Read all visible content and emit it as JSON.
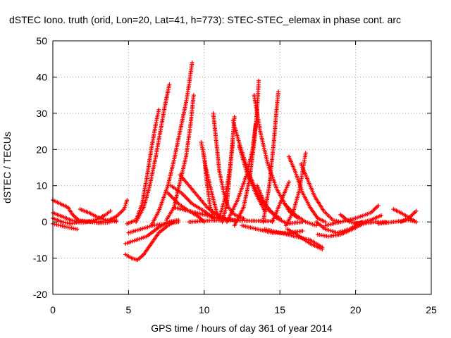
{
  "chart_data": {
    "type": "scatter",
    "title": "dSTEC Iono. truth (orid, Lon=20, Lat=41, h=773): STEC-STEC_elemax in phase cont. arc",
    "xlabel": "GPS time / hours of day 361 of year 2014",
    "ylabel": "dSTEC  / TECUs",
    "xlim": [
      0,
      25
    ],
    "ylim": [
      -20,
      50
    ],
    "xticks": [
      0,
      5,
      10,
      15,
      20,
      25
    ],
    "yticks": [
      -20,
      -10,
      0,
      10,
      20,
      30,
      40,
      50
    ],
    "grid": true,
    "marker": "+",
    "color": "#ff0000",
    "series": [
      {
        "points": [
          [
            0.0,
            6
          ],
          [
            0.5,
            5
          ],
          [
            1.0,
            4
          ],
          [
            1.3,
            2
          ],
          [
            1.7,
            0.5
          ],
          [
            2.2,
            0
          ],
          [
            2.8,
            0.5
          ],
          [
            3.5,
            2
          ],
          [
            3.8,
            3
          ]
        ]
      },
      {
        "points": [
          [
            0.0,
            -0.5
          ],
          [
            0.5,
            -1
          ],
          [
            1.0,
            -1.5
          ],
          [
            1.6,
            -2
          ]
        ]
      },
      {
        "points": [
          [
            0.0,
            2.5
          ],
          [
            0.6,
            1.5
          ],
          [
            1.2,
            0.5
          ],
          [
            1.8,
            -0.2
          ],
          [
            2.4,
            0
          ]
        ]
      },
      {
        "points": [
          [
            0.0,
            1
          ],
          [
            0.6,
            0
          ],
          [
            1.2,
            -0.5
          ],
          [
            2.0,
            0.3
          ],
          [
            2.6,
            0
          ]
        ]
      },
      {
        "points": [
          [
            1.8,
            3.5
          ],
          [
            2.4,
            2.5
          ],
          [
            3.0,
            1.2
          ],
          [
            3.6,
            0.4
          ],
          [
            4.2,
            0.1
          ]
        ]
      },
      {
        "points": [
          [
            2.5,
            0
          ],
          [
            3.0,
            -0.3
          ],
          [
            3.6,
            -0.2
          ],
          [
            4.2,
            0.5
          ]
        ]
      },
      {
        "points": [
          [
            3.0,
            0
          ],
          [
            3.6,
            0.3
          ],
          [
            4.2,
            1.5
          ],
          [
            4.7,
            3.5
          ],
          [
            4.9,
            6
          ]
        ]
      },
      {
        "points": [
          [
            4.9,
            -0.5
          ],
          [
            5.5,
            0.5
          ],
          [
            5.9,
            5
          ],
          [
            6.2,
            12
          ],
          [
            6.5,
            20
          ],
          [
            6.8,
            27
          ],
          [
            7.0,
            31
          ]
        ]
      },
      {
        "points": [
          [
            5.5,
            0
          ],
          [
            6.0,
            4
          ],
          [
            6.4,
            10
          ],
          [
            6.8,
            18
          ],
          [
            7.1,
            25
          ],
          [
            7.4,
            32
          ],
          [
            7.7,
            38
          ]
        ]
      },
      {
        "points": [
          [
            6.5,
            -1
          ],
          [
            7.0,
            3
          ],
          [
            7.6,
            10
          ],
          [
            8.0,
            17
          ],
          [
            8.4,
            25
          ],
          [
            8.8,
            33
          ],
          [
            9.0,
            38
          ],
          [
            9.2,
            44
          ]
        ]
      },
      {
        "points": [
          [
            7.5,
            0.5
          ],
          [
            8.0,
            4
          ],
          [
            8.4,
            11
          ],
          [
            8.8,
            18
          ],
          [
            9.1,
            27
          ],
          [
            9.3,
            35
          ]
        ]
      },
      {
        "points": [
          [
            4.8,
            -9
          ],
          [
            5.2,
            -10
          ],
          [
            5.6,
            -10.5
          ],
          [
            6.0,
            -9
          ],
          [
            6.5,
            -6
          ],
          [
            7.0,
            -3
          ],
          [
            7.6,
            -1
          ],
          [
            8.0,
            0
          ]
        ]
      },
      {
        "points": [
          [
            4.8,
            -6
          ],
          [
            5.5,
            -5
          ],
          [
            6.2,
            -4
          ],
          [
            7.0,
            -1.5
          ],
          [
            7.6,
            0
          ],
          [
            8.3,
            0.5
          ]
        ]
      },
      {
        "points": [
          [
            5.0,
            -3
          ],
          [
            5.8,
            -2
          ],
          [
            6.6,
            -1
          ],
          [
            7.5,
            -0.5
          ],
          [
            8.3,
            0
          ]
        ]
      },
      {
        "points": [
          [
            7.6,
            8
          ],
          [
            8.3,
            5
          ],
          [
            9.0,
            3
          ],
          [
            9.6,
            1.5
          ],
          [
            10.0,
            0
          ]
        ]
      },
      {
        "points": [
          [
            7.8,
            10
          ],
          [
            8.5,
            8
          ],
          [
            9.2,
            5
          ],
          [
            10.0,
            3
          ],
          [
            10.6,
            1
          ]
        ]
      },
      {
        "points": [
          [
            8.4,
            13
          ],
          [
            9.0,
            10
          ],
          [
            9.6,
            7
          ],
          [
            10.2,
            4
          ],
          [
            10.8,
            2
          ],
          [
            11.4,
            1
          ]
        ]
      },
      {
        "points": [
          [
            8.0,
            4
          ],
          [
            9.0,
            3
          ],
          [
            10.0,
            2
          ],
          [
            11.0,
            1
          ],
          [
            12.0,
            0.5
          ]
        ]
      },
      {
        "points": [
          [
            9.0,
            0
          ],
          [
            10.0,
            0.3
          ],
          [
            11.5,
            0.5
          ],
          [
            13.0,
            0.3
          ],
          [
            14.5,
            0.2
          ]
        ]
      },
      {
        "points": [
          [
            9.8,
            22
          ],
          [
            10.0,
            18
          ],
          [
            10.2,
            10
          ],
          [
            10.4,
            4
          ],
          [
            10.6,
            1
          ]
        ]
      },
      {
        "points": [
          [
            9.9,
            20
          ],
          [
            10.1,
            15
          ],
          [
            10.5,
            8
          ],
          [
            10.8,
            3
          ],
          [
            11.0,
            1
          ]
        ]
      },
      {
        "points": [
          [
            10.6,
            30
          ],
          [
            10.8,
            22
          ],
          [
            11.0,
            14
          ],
          [
            11.3,
            8
          ],
          [
            11.6,
            4
          ],
          [
            12.0,
            2
          ],
          [
            12.6,
            1
          ]
        ]
      },
      {
        "points": [
          [
            11.2,
            0
          ],
          [
            11.5,
            5
          ],
          [
            11.7,
            14
          ],
          [
            11.9,
            24
          ],
          [
            12.0,
            29
          ]
        ]
      },
      {
        "points": [
          [
            11.0,
            1
          ],
          [
            11.4,
            7
          ],
          [
            11.7,
            15
          ],
          [
            11.9,
            22
          ]
        ]
      },
      {
        "points": [
          [
            11.5,
            0
          ],
          [
            12.2,
            6
          ],
          [
            12.8,
            13
          ],
          [
            13.2,
            20
          ],
          [
            13.4,
            27
          ]
        ]
      },
      {
        "points": [
          [
            12.0,
            -1
          ],
          [
            12.6,
            4
          ],
          [
            13.0,
            12
          ],
          [
            13.3,
            22
          ],
          [
            13.5,
            31
          ],
          [
            13.6,
            39
          ]
        ]
      },
      {
        "points": [
          [
            11.9,
            28
          ],
          [
            12.3,
            22
          ],
          [
            12.9,
            14
          ],
          [
            13.6,
            7
          ],
          [
            14.3,
            3
          ],
          [
            15.0,
            1
          ]
        ]
      },
      {
        "points": [
          [
            12.3,
            21
          ],
          [
            12.8,
            14
          ],
          [
            13.5,
            7
          ],
          [
            14.0,
            3
          ]
        ]
      },
      {
        "points": [
          [
            13.3,
            35
          ],
          [
            13.7,
            25
          ],
          [
            14.2,
            16
          ],
          [
            14.8,
            9
          ],
          [
            15.2,
            6
          ],
          [
            15.6,
            3
          ],
          [
            16.2,
            1
          ]
        ]
      },
      {
        "points": [
          [
            13.5,
            10
          ],
          [
            14.0,
            5
          ],
          [
            14.8,
            1
          ],
          [
            15.5,
            -0.5
          ],
          [
            16.5,
            0
          ]
        ]
      },
      {
        "points": [
          [
            13.9,
            0
          ],
          [
            14.3,
            10
          ],
          [
            14.6,
            22
          ],
          [
            14.8,
            32
          ],
          [
            14.9,
            36
          ]
        ]
      },
      {
        "points": [
          [
            12.5,
            -1
          ],
          [
            13.5,
            -2
          ],
          [
            14.5,
            -3
          ],
          [
            15.5,
            -3
          ],
          [
            16.5,
            -2.5
          ]
        ]
      },
      {
        "points": [
          [
            14.5,
            0
          ],
          [
            15.0,
            5
          ],
          [
            15.4,
            9
          ],
          [
            15.6,
            11
          ]
        ]
      },
      {
        "points": [
          [
            14.0,
            -2
          ],
          [
            15.0,
            -3
          ],
          [
            16.0,
            -4
          ],
          [
            17.0,
            -5
          ],
          [
            17.8,
            -7
          ]
        ]
      },
      {
        "points": [
          [
            15.5,
            -2
          ],
          [
            16.3,
            -4
          ],
          [
            17.0,
            -6
          ],
          [
            17.8,
            -7.5
          ]
        ]
      },
      {
        "points": [
          [
            15.3,
            5
          ],
          [
            16.0,
            2
          ],
          [
            16.7,
            0
          ],
          [
            17.4,
            -1
          ]
        ]
      },
      {
        "points": [
          [
            15.4,
            -1
          ],
          [
            15.9,
            3
          ],
          [
            16.3,
            9
          ],
          [
            16.5,
            14
          ],
          [
            16.7,
            19
          ]
        ]
      },
      {
        "points": [
          [
            15.6,
            18
          ],
          [
            16.0,
            14
          ],
          [
            16.5,
            8
          ],
          [
            17.0,
            4
          ],
          [
            17.5,
            1
          ],
          [
            18.0,
            0
          ]
        ]
      },
      {
        "points": [
          [
            16.4,
            16
          ],
          [
            16.8,
            12
          ],
          [
            17.3,
            7
          ],
          [
            17.9,
            3
          ],
          [
            18.5,
            0.5
          ],
          [
            19.0,
            0
          ]
        ]
      },
      {
        "points": [
          [
            17.4,
            0
          ],
          [
            18.0,
            -2
          ],
          [
            18.8,
            -3
          ],
          [
            19.6,
            -2
          ],
          [
            20.4,
            0
          ]
        ]
      },
      {
        "points": [
          [
            17.5,
            -3.5
          ],
          [
            18.2,
            -4
          ],
          [
            19.0,
            -3.5
          ],
          [
            19.8,
            -2
          ],
          [
            20.5,
            -0.5
          ]
        ]
      },
      {
        "points": [
          [
            18.0,
            -1
          ],
          [
            19.0,
            0
          ],
          [
            20.0,
            1
          ],
          [
            21.0,
            2.5
          ],
          [
            21.5,
            4.5
          ]
        ]
      },
      {
        "points": [
          [
            19.0,
            2
          ],
          [
            19.6,
            0
          ],
          [
            20.4,
            -0.5
          ],
          [
            21.3,
            0
          ],
          [
            22.0,
            0
          ]
        ]
      },
      {
        "points": [
          [
            20.0,
            -0.5
          ],
          [
            21.0,
            0.5
          ],
          [
            21.7,
            1.8
          ]
        ]
      },
      {
        "points": [
          [
            22.5,
            3.5
          ],
          [
            23.0,
            2.5
          ],
          [
            23.6,
            1
          ],
          [
            24.0,
            0
          ]
        ]
      },
      {
        "points": [
          [
            23.0,
            0
          ],
          [
            23.5,
            1
          ],
          [
            24.0,
            3
          ]
        ]
      },
      {
        "points": [
          [
            21.5,
            -0.5
          ],
          [
            22.5,
            0
          ],
          [
            23.5,
            0.5
          ],
          [
            24.0,
            0
          ]
        ]
      }
    ]
  }
}
